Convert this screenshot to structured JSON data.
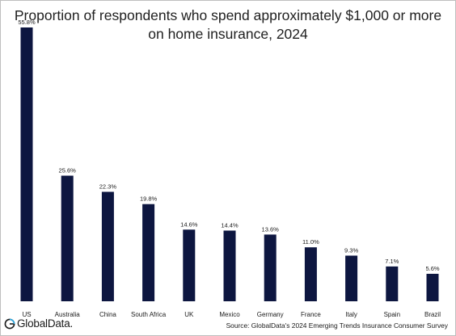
{
  "title_line1": "Proportion of respondents who spend approximately $1,000 or more",
  "title_line2": "on home insurance, 2024",
  "chart_data": {
    "type": "bar",
    "title": "Proportion of respondents who spend approximately $1,000 or more on home insurance, 2024",
    "xlabel": "",
    "ylabel": "",
    "categories": [
      "US",
      "Australia",
      "China",
      "South Africa",
      "UK",
      "Mexico",
      "Germany",
      "France",
      "Italy",
      "Spain",
      "Brazil"
    ],
    "values": [
      55.8,
      25.6,
      22.3,
      19.8,
      14.6,
      14.4,
      13.6,
      11.0,
      9.3,
      7.1,
      5.6
    ],
    "value_labels": [
      "55.8%",
      "25.6%",
      "22.3%",
      "19.8%",
      "14.6%",
      "14.4%",
      "13.6%",
      "11.0%",
      "9.3%",
      "7.1%",
      "5.6%"
    ],
    "ylim": [
      0,
      55.8
    ],
    "grid": false,
    "legend": "none",
    "bar_color": "#0d1640"
  },
  "logo": {
    "text": "GlobalData.",
    "icon": "globaldata-logo-icon"
  },
  "source": "Source: GlobalData's 2024 Emerging Trends Insurance Consumer Survey"
}
